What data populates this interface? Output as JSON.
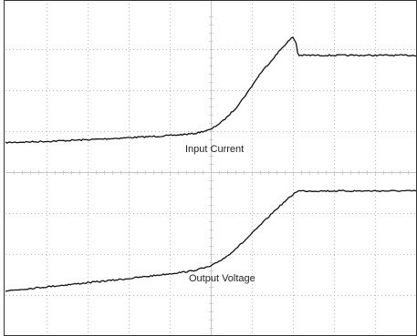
{
  "chart_data": {
    "type": "line",
    "title": "",
    "xlabel": "",
    "ylabel": "",
    "grid": true,
    "x_divisions": 10,
    "y_divisions": 8,
    "xlim": [
      0,
      10
    ],
    "ylim": [
      -4,
      4
    ],
    "colors": {
      "trace": "#111111",
      "grid": "#b8b8b8",
      "axis": "#c8c8c8",
      "frame": "#333333"
    },
    "series": [
      {
        "label": "Input Current",
        "x": [
          0,
          1,
          2,
          3,
          4,
          4.6,
          5,
          5.3,
          5.6,
          5.9,
          6.2,
          6.5,
          6.75,
          7,
          7.1,
          7.12,
          7.3,
          8,
          9,
          10
        ],
        "y": [
          0.72,
          0.75,
          0.79,
          0.84,
          0.89,
          0.94,
          1.04,
          1.25,
          1.55,
          1.95,
          2.4,
          2.75,
          3.05,
          3.3,
          3.1,
          2.85,
          2.85,
          2.85,
          2.85,
          2.85
        ]
      },
      {
        "label": "Output Voltage",
        "x": [
          0,
          1,
          2,
          3,
          4,
          4.5,
          5,
          5.4,
          5.8,
          6.2,
          6.6,
          7.1,
          7.5,
          8,
          9,
          10
        ],
        "y": [
          -2.9,
          -2.8,
          -2.7,
          -2.6,
          -2.48,
          -2.42,
          -2.3,
          -2.05,
          -1.7,
          -1.3,
          -0.9,
          -0.46,
          -0.46,
          -0.46,
          -0.46,
          -0.46
        ]
      }
    ]
  }
}
